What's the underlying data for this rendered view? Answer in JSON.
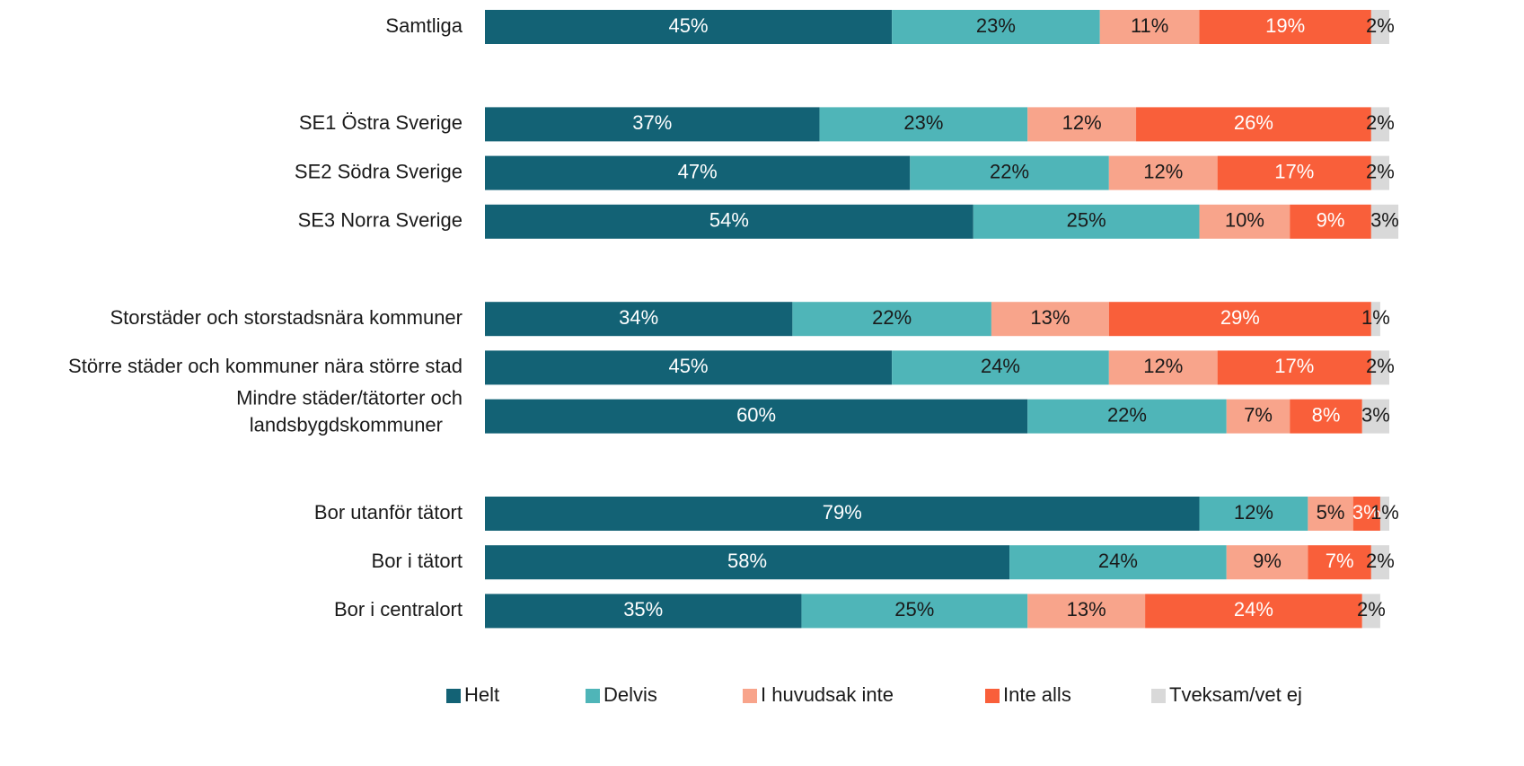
{
  "chart_data": {
    "type": "stacked_barh",
    "categories": [
      "Samtliga",
      null,
      "SE1 Östra Sverige",
      "SE2 Södra Sverige",
      "SE3 Norra Sverige",
      null,
      "Storstäder och storstadsnära kommuner",
      "Större städer och kommuner nära större stad",
      "Mindre städer/tätorter och\nlandsbygdskommuner",
      null,
      "Bor utanför tätort",
      "Bor i tätort",
      "Bor i centralort"
    ],
    "xlim": [
      0,
      100
    ],
    "legend": "bottom",
    "series": [
      {
        "name": "Helt",
        "color": "#136275",
        "label_color": "#ffffff",
        "values": [
          45,
          null,
          37,
          47,
          54,
          null,
          34,
          45,
          60,
          null,
          79,
          58,
          35
        ],
        "value_labels": [
          "45%",
          null,
          "37%",
          "47%",
          "54%",
          null,
          "34%",
          "45%",
          "60%",
          null,
          "79%",
          "58%",
          "35%"
        ]
      },
      {
        "name": "Delvis",
        "color": "#4fb5b8",
        "label_color": "#1a1a1a",
        "values": [
          23,
          null,
          23,
          22,
          25,
          null,
          22,
          24,
          22,
          null,
          12,
          24,
          25
        ],
        "value_labels": [
          "23%",
          null,
          "23%",
          "22%",
          "25%",
          null,
          "22%",
          "24%",
          "22%",
          null,
          "12%",
          "24%",
          "25%"
        ]
      },
      {
        "name": "I huvudsak inte",
        "color": "#f8a48b",
        "label_color": "#1a1a1a",
        "values": [
          11,
          null,
          12,
          12,
          10,
          null,
          13,
          12,
          7,
          null,
          5,
          9,
          13
        ],
        "value_labels": [
          "11%",
          null,
          "12%",
          "12%",
          "10%",
          null,
          "13%",
          "12%",
          "7%",
          null,
          "5%",
          "9%",
          "13%"
        ]
      },
      {
        "name": "Inte alls",
        "color": "#f95f3a",
        "label_color": "#ffffff",
        "values": [
          19,
          null,
          26,
          17,
          9,
          null,
          29,
          17,
          8,
          null,
          3,
          7,
          24
        ],
        "value_labels": [
          "19%",
          null,
          "26%",
          "17%",
          "9%",
          null,
          "29%",
          "17%",
          "8%",
          null,
          "3%",
          "7%",
          "24%"
        ]
      },
      {
        "name": "Tveksam/vet ej",
        "color": "#d9d9d9",
        "label_color": "#1a1a1a",
        "values": [
          2,
          null,
          2,
          2,
          3,
          null,
          1,
          2,
          3,
          null,
          1,
          2,
          2
        ],
        "value_labels": [
          "2%",
          null,
          "2%",
          "2%",
          "3%",
          null,
          "1%",
          "2%",
          "3%",
          null,
          "1%",
          "2%",
          "2%"
        ]
      }
    ]
  }
}
